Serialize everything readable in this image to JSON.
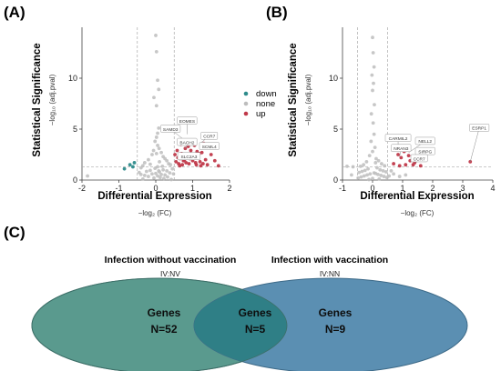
{
  "panels": {
    "a": "(A)",
    "b": "(B)",
    "c": "(C)"
  },
  "chart_data": [
    {
      "type": "scatter",
      "panel": "(A)",
      "title": "",
      "xlabel": "Differential Expression",
      "xlabel_sub": "−log₂ (FC)",
      "ylabel": "Statistical Significance",
      "ylabel_sub": "−log₁₀ (adj.pval)",
      "xlim": [
        -2,
        2
      ],
      "ylim": [
        0,
        15
      ],
      "xticks": [
        "-2",
        "-1",
        "0",
        "1",
        "2"
      ],
      "xtick_values": [
        -2,
        -1,
        0,
        1,
        2
      ],
      "yticks": [
        "0",
        "5",
        "10"
      ],
      "ytick_values": [
        0,
        5,
        10
      ],
      "vlines": [
        -0.5,
        0.5
      ],
      "hline": 1.3,
      "legend": {
        "placement": "right",
        "entries": [
          {
            "name": "down",
            "color": "#2e8b8b"
          },
          {
            "name": "none",
            "color": "#bdbdbd"
          },
          {
            "name": "up",
            "color": "#c0394a"
          }
        ]
      },
      "colors": {
        "up": "#c0394a",
        "down": "#2e8b8b",
        "none": "#bdbdbd"
      },
      "series": [
        {
          "name": "none",
          "points": [
            [
              0.0,
              14.2
            ],
            [
              0.02,
              12.6
            ],
            [
              0.05,
              9.8
            ],
            [
              0.08,
              8.9
            ],
            [
              -0.05,
              8.1
            ],
            [
              0.02,
              7.3
            ],
            [
              0.08,
              5.1
            ],
            [
              0.05,
              4.6
            ],
            [
              0.02,
              4.2
            ],
            [
              -0.02,
              3.8
            ],
            [
              0.05,
              3.4
            ],
            [
              0.09,
              3.1
            ],
            [
              -0.06,
              2.9
            ],
            [
              0.15,
              2.7
            ],
            [
              -0.1,
              2.5
            ],
            [
              0.2,
              2.3
            ],
            [
              0.25,
              2.1
            ],
            [
              -0.2,
              2.0
            ],
            [
              0.3,
              1.9
            ],
            [
              0.1,
              1.8
            ],
            [
              -0.3,
              1.7
            ],
            [
              0.35,
              1.6
            ],
            [
              0.4,
              1.5
            ],
            [
              -0.35,
              1.4
            ],
            [
              0.05,
              1.3
            ],
            [
              -0.4,
              1.2
            ],
            [
              0.45,
              1.1
            ],
            [
              0.2,
              1.0
            ],
            [
              -0.15,
              0.95
            ],
            [
              0.3,
              0.9
            ],
            [
              -0.25,
              0.85
            ],
            [
              0.1,
              0.8
            ],
            [
              -0.45,
              0.75
            ],
            [
              0.38,
              0.7
            ],
            [
              0.0,
              0.65
            ],
            [
              -0.1,
              0.6
            ],
            [
              0.15,
              0.55
            ],
            [
              0.25,
              0.5
            ],
            [
              -0.3,
              0.45
            ],
            [
              0.05,
              0.4
            ],
            [
              -0.2,
              0.35
            ],
            [
              0.32,
              0.3
            ],
            [
              0.12,
              0.25
            ],
            [
              -0.05,
              0.2
            ],
            [
              0.22,
              0.15
            ],
            [
              -0.35,
              0.1
            ],
            [
              0.42,
              0.05
            ],
            [
              -1.85,
              0.4
            ],
            [
              -0.15,
              1.55
            ],
            [
              0.18,
              1.35
            ],
            [
              -0.02,
              1.15
            ],
            [
              0.08,
              0.9
            ],
            [
              -0.4,
              0.55
            ],
            [
              0.48,
              0.6
            ],
            [
              0.02,
              2.6
            ]
          ]
        },
        {
          "name": "down",
          "points": [
            [
              -0.62,
              1.3
            ],
            [
              -0.7,
              1.5
            ],
            [
              -0.85,
              1.1
            ],
            [
              -0.58,
              1.7
            ]
          ]
        },
        {
          "name": "up",
          "points": [
            [
              0.55,
              1.8
            ],
            [
              0.6,
              2.2
            ],
            [
              0.65,
              1.4
            ],
            [
              0.7,
              2.6
            ],
            [
              0.75,
              1.9
            ],
            [
              0.8,
              3.1
            ],
            [
              0.85,
              2.4
            ],
            [
              0.9,
              1.6
            ],
            [
              0.95,
              2.9
            ],
            [
              1.0,
              1.9
            ],
            [
              1.05,
              3.4
            ],
            [
              1.1,
              1.5
            ],
            [
              1.15,
              2.3
            ],
            [
              1.2,
              1.8
            ],
            [
              1.25,
              2.7
            ],
            [
              1.3,
              3.6
            ],
            [
              1.35,
              2.0
            ],
            [
              1.4,
              1.5
            ],
            [
              1.5,
              2.5
            ],
            [
              1.6,
              1.9
            ],
            [
              1.7,
              1.4
            ],
            [
              0.58,
              2.9
            ],
            [
              0.68,
              3.5
            ],
            [
              0.78,
              2.0
            ],
            [
              0.88,
              3.3
            ],
            [
              0.98,
              2.2
            ],
            [
              1.08,
              1.7
            ],
            [
              1.18,
              2.6
            ],
            [
              1.28,
              1.6
            ],
            [
              0.62,
              1.6
            ],
            [
              0.72,
              1.5
            ],
            [
              0.82,
              1.7
            ],
            [
              0.92,
              2.1
            ],
            [
              1.02,
              2.4
            ],
            [
              1.12,
              2.8
            ],
            [
              1.22,
              1.4
            ],
            [
              0.52,
              2.5
            ],
            [
              0.66,
              2.1
            ]
          ]
        }
      ],
      "gene_labels": [
        {
          "text": "EOMES",
          "x": 0.85,
          "y": 4.5,
          "lx": 0.85,
          "ly": 5.8
        },
        {
          "text": "SAMD3",
          "x": 0.75,
          "y": 4.0,
          "lx": 0.4,
          "ly": 5.0
        },
        {
          "text": "CCR7",
          "x": 1.2,
          "y": 3.6,
          "lx": 1.45,
          "ly": 4.3
        },
        {
          "text": "BACH2",
          "x": 0.8,
          "y": 3.1,
          "lx": 0.85,
          "ly": 3.7
        },
        {
          "text": "SCML4",
          "x": 1.3,
          "y": 3.2,
          "lx": 1.45,
          "ly": 3.3
        },
        {
          "text": "SLC2A3",
          "x": 0.85,
          "y": 2.6,
          "lx": 0.9,
          "ly": 2.3
        }
      ]
    },
    {
      "type": "scatter",
      "panel": "(B)",
      "title": "",
      "xlabel": "Differential Expression",
      "xlabel_sub": "−log₂ (FC)",
      "ylabel": "Statistical Significance",
      "ylabel_sub": "−log₁₀ (adj.pval)",
      "xlim": [
        -1,
        4
      ],
      "ylim": [
        0,
        15
      ],
      "xticks": [
        "-1",
        "0",
        "1",
        "2",
        "3",
        "4"
      ],
      "xtick_values": [
        -1,
        0,
        1,
        2,
        3,
        4
      ],
      "yticks": [
        "0",
        "5",
        "10"
      ],
      "ytick_values": [
        0,
        5,
        10
      ],
      "vlines": [
        -0.5,
        0.5
      ],
      "hline": 1.3,
      "colors": {
        "up": "#c0394a",
        "down": "#2e8b8b",
        "none": "#bdbdbd"
      },
      "series": [
        {
          "name": "none",
          "points": [
            [
              0.0,
              14.0
            ],
            [
              0.02,
              12.5
            ],
            [
              0.05,
              11.1
            ],
            [
              -0.02,
              10.3
            ],
            [
              0.03,
              9.5
            ],
            [
              0.0,
              8.8
            ],
            [
              0.06,
              7.4
            ],
            [
              -0.04,
              6.5
            ],
            [
              0.02,
              5.6
            ],
            [
              0.05,
              4.5
            ],
            [
              -0.05,
              3.8
            ],
            [
              0.08,
              3.2
            ],
            [
              0.0,
              2.8
            ],
            [
              -0.1,
              2.4
            ],
            [
              0.12,
              2.1
            ],
            [
              0.2,
              1.9
            ],
            [
              -0.2,
              1.8
            ],
            [
              0.3,
              1.6
            ],
            [
              -0.3,
              1.5
            ],
            [
              0.4,
              1.4
            ],
            [
              -0.4,
              1.35
            ],
            [
              0.15,
              1.2
            ],
            [
              -0.15,
              1.1
            ],
            [
              0.25,
              1.0
            ],
            [
              -0.25,
              0.95
            ],
            [
              0.35,
              0.9
            ],
            [
              -0.35,
              0.85
            ],
            [
              0.45,
              0.8
            ],
            [
              -0.45,
              0.75
            ],
            [
              0.05,
              0.7
            ],
            [
              0.1,
              0.65
            ],
            [
              -0.08,
              0.6
            ],
            [
              0.18,
              0.55
            ],
            [
              -0.18,
              0.5
            ],
            [
              0.28,
              0.45
            ],
            [
              -0.28,
              0.4
            ],
            [
              0.38,
              0.35
            ],
            [
              -0.38,
              0.3
            ],
            [
              0.48,
              0.25
            ],
            [
              -0.48,
              0.2
            ],
            [
              0.0,
              0.15
            ],
            [
              0.22,
              0.1
            ],
            [
              -0.12,
              0.05
            ],
            [
              -0.85,
              1.35
            ],
            [
              -0.65,
              1.3
            ],
            [
              0.55,
              0.4
            ],
            [
              0.7,
              0.6
            ],
            [
              0.9,
              0.35
            ],
            [
              1.1,
              0.5
            ],
            [
              0.62,
              0.9
            ],
            [
              -0.7,
              0.5
            ],
            [
              0.1,
              1.7
            ]
          ]
        },
        {
          "name": "up",
          "points": [
            [
              0.8,
              3.2
            ],
            [
              0.85,
              2.5
            ],
            [
              0.95,
              2.2
            ],
            [
              1.05,
              2.8
            ],
            [
              1.1,
              1.5
            ],
            [
              1.25,
              1.9
            ],
            [
              1.4,
              1.7
            ],
            [
              1.5,
              2.0
            ],
            [
              1.6,
              1.4
            ],
            [
              0.7,
              1.6
            ],
            [
              0.9,
              1.4
            ],
            [
              1.2,
              2.4
            ],
            [
              3.25,
              1.8
            ],
            [
              1.35,
              1.5
            ]
          ]
        },
        {
          "name": "down",
          "points": []
        }
      ],
      "gene_labels": [
        {
          "text": "CARMIL2",
          "x": 0.85,
          "y": 3.0,
          "lx": 0.85,
          "ly": 4.1
        },
        {
          "text": "NELL2",
          "x": 1.2,
          "y": 2.7,
          "lx": 1.75,
          "ly": 3.8
        },
        {
          "text": "NRAN3",
          "x": 0.9,
          "y": 2.3,
          "lx": 0.95,
          "ly": 3.1
        },
        {
          "text": "SIRPG",
          "x": 1.3,
          "y": 2.2,
          "lx": 1.75,
          "ly": 2.8
        },
        {
          "text": "CCR7",
          "x": 1.45,
          "y": 1.7,
          "lx": 1.55,
          "ly": 2.1
        },
        {
          "text": "ESRP1",
          "x": 3.25,
          "y": 1.8,
          "lx": 3.55,
          "ly": 5.1
        }
      ]
    }
  ],
  "venn": {
    "left_title": "Infection without vaccination",
    "left_sub": "IV:NV",
    "right_title": "Infection with vaccination",
    "right_sub": "IV:NN",
    "left_label": "Genes",
    "left_count": "N=52",
    "center_label": "Genes",
    "center_count": "N=5",
    "right_label": "Genes",
    "right_count": "N=9",
    "colors": {
      "left": "#5a9a8e",
      "right": "#5b8fb2",
      "overlap": "#2f7f86"
    }
  }
}
